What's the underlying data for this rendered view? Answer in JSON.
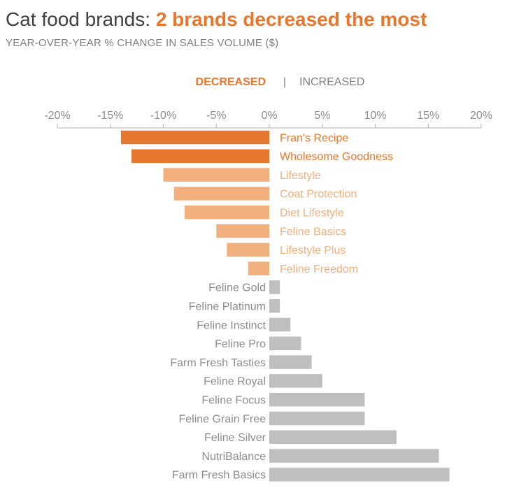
{
  "title": {
    "prefix": "Cat food brands: ",
    "highlight": "2 brands decreased the most"
  },
  "subtitle": "YEAR-OVER-YEAR % CHANGE IN SALES VOLUME ($)",
  "colors": {
    "decrease_highlight": "#e8772e",
    "decrease_light": "#f2b07f",
    "increase": "#bfbfbf",
    "text_gray": "#8c8c8c",
    "title_gray": "#404040",
    "axis": "#bfbfbf"
  },
  "chart_data": {
    "type": "bar",
    "orientation": "horizontal",
    "legend": {
      "decreased": "DECREASED",
      "separator": "|",
      "increased": "INCREASED",
      "placement": "top"
    },
    "xlim": [
      -20,
      20
    ],
    "xticks": [
      -20,
      -15,
      -10,
      -5,
      0,
      5,
      10,
      15,
      20
    ],
    "xtick_labels": [
      "-20%",
      "-15%",
      "-10%",
      "-5%",
      "0%",
      "5%",
      "10%",
      "15%",
      "20%"
    ],
    "grid": false,
    "categories": [
      "Fran's Recipe",
      "Wholesome Goodness",
      "Lifestyle",
      "Coat Protection",
      "Diet Lifestyle",
      "Feline Basics",
      "Lifestyle Plus",
      "Feline Freedom",
      "Feline Gold",
      "Feline Platinum",
      "Feline Instinct",
      "Feline Pro",
      "Farm Fresh Tasties",
      "Feline Royal",
      "Feline Focus",
      "Feline Grain Free",
      "Feline Silver",
      "NutriBalance",
      "Farm Fresh Basics"
    ],
    "values": [
      -14,
      -13,
      -10,
      -9,
      -8,
      -5,
      -4,
      -2,
      1,
      1,
      2,
      3,
      4,
      5,
      9,
      9,
      12,
      16,
      17
    ],
    "highlighted": [
      "Fran's Recipe",
      "Wholesome Goodness"
    ]
  }
}
